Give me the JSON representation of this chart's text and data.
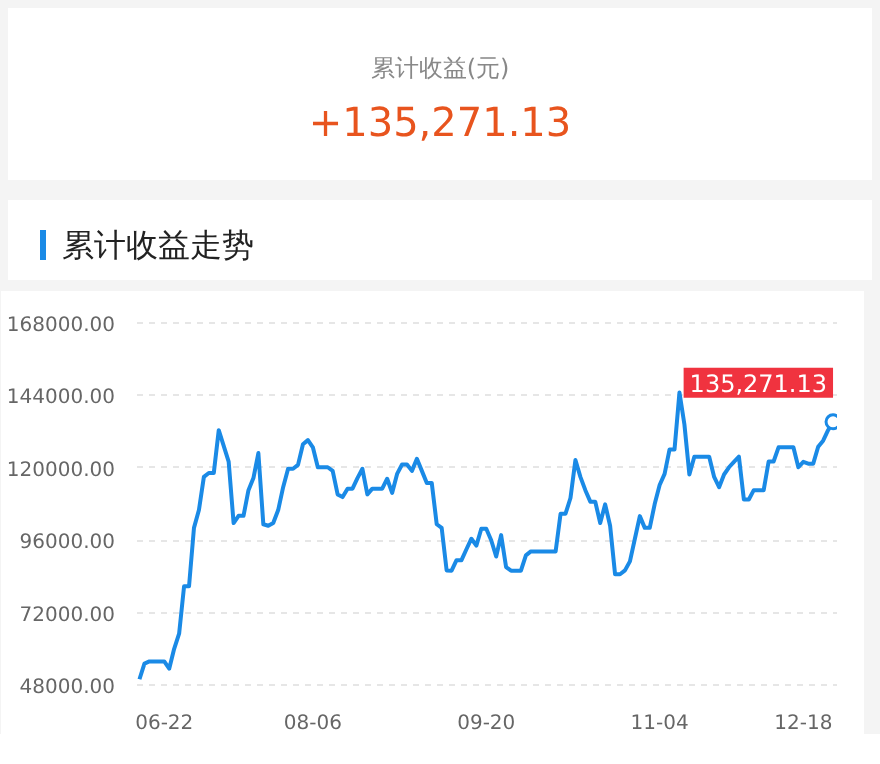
{
  "chart_data": {
    "type": "line",
    "title": "累计收益走势",
    "annotations": [
      "累计收益(元)",
      "+135,271.13",
      "135,271.13"
    ],
    "categories": [
      null,
      null,
      null,
      null,
      null,
      "06-22",
      null,
      null,
      null,
      null,
      null,
      null,
      null,
      null,
      null,
      null,
      null,
      null,
      null,
      null,
      null,
      null,
      null,
      null,
      null,
      null,
      null,
      null,
      null,
      null,
      null,
      null,
      null,
      null,
      null,
      "08-06",
      null,
      null,
      null,
      null,
      null,
      null,
      null,
      null,
      null,
      null,
      null,
      null,
      null,
      null,
      null,
      null,
      null,
      null,
      null,
      null,
      null,
      null,
      null,
      null,
      null,
      null,
      null,
      null,
      null,
      null,
      null,
      null,
      null,
      null,
      "09-20",
      null,
      null,
      null,
      null,
      null,
      null,
      null,
      null,
      null,
      null,
      null,
      null,
      null,
      null,
      null,
      null,
      null,
      null,
      null,
      null,
      null,
      null,
      null,
      null,
      null,
      null,
      null,
      null,
      null,
      null,
      null,
      null,
      null,
      null,
      "11-04",
      null,
      null,
      null,
      null,
      null,
      null,
      null,
      null,
      null,
      null,
      null,
      null,
      null,
      null,
      null,
      null,
      null,
      null,
      null,
      null,
      null,
      null,
      null,
      null,
      null,
      null,
      null,
      null,
      "12-18",
      null,
      null,
      null,
      null,
      null,
      null
    ],
    "series": [
      {
        "color": "#1a8ae6",
        "values": [
          49900,
          55100,
          55800,
          55800,
          55800,
          55800,
          53400,
          60000,
          65000,
          80700,
          80700,
          100100,
          106000,
          117000,
          118300,
          118300,
          132500,
          127300,
          122100,
          101700,
          104100,
          104100,
          112600,
          116600,
          124900,
          101300,
          100800,
          101700,
          106000,
          113600,
          119700,
          119700,
          121000,
          127800,
          129200,
          126800,
          120200,
          120200,
          120200,
          119000,
          111200,
          110300,
          113100,
          113100,
          116600,
          119700,
          111200,
          113100,
          113100,
          113100,
          116400,
          111700,
          118000,
          121100,
          121100,
          119000,
          123000,
          119000,
          115000,
          115000,
          101300,
          100100,
          86000,
          85900,
          89400,
          89400,
          93000,
          96500,
          94200,
          99800,
          99800,
          96000,
          90600,
          97700,
          87100,
          85900,
          85900,
          85900,
          91000,
          92300,
          92300,
          92300,
          92300,
          92300,
          92300,
          104800,
          104800,
          110000,
          122600,
          117000,
          112600,
          108800,
          108800,
          101700,
          107900,
          100800,
          84700,
          84700,
          86000,
          89000,
          96500,
          104000,
          100100,
          100100,
          108000,
          114300,
          118000,
          126100,
          126100,
          145000,
          134400,
          117800,
          123700,
          123700,
          123700,
          123700,
          117000,
          113600,
          117800,
          120200,
          122000,
          123700,
          109500,
          109500,
          112600,
          112600,
          112600,
          122100,
          122100,
          126800,
          126800,
          126800,
          126800,
          120200,
          122000,
          121400,
          121400,
          127000,
          129000,
          132500,
          135271.13
        ]
      }
    ],
    "ylim": [
      46000,
      176000
    ],
    "yticks": [
      {
        "value": 48000,
        "label": "48000.00"
      },
      {
        "value": 72000,
        "label": "72000.00"
      },
      {
        "value": 96000,
        "label": "96000.00"
      },
      {
        "value": 120000,
        "label": "120000.00"
      },
      {
        "value": 144000,
        "label": "144000.00"
      },
      {
        "value": 168000,
        "label": "168000.00"
      }
    ],
    "grid": "y",
    "marker": "none",
    "line_style": "solid"
  }
}
